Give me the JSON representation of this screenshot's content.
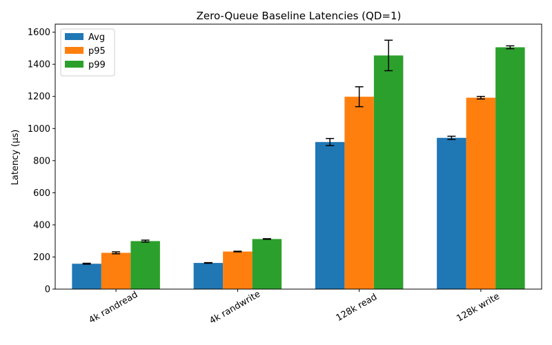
{
  "chart_data": {
    "type": "bar",
    "title": "Zero-Queue Baseline Latencies (QD=1)",
    "xlabel": "",
    "ylabel": "Latency (µs)",
    "ylim": [
      0,
      1650
    ],
    "yticks": [
      0,
      200,
      400,
      600,
      800,
      1000,
      1200,
      1400,
      1600
    ],
    "categories": [
      "4k randread",
      "4k randwrite",
      "128k read",
      "128k write"
    ],
    "series": [
      {
        "name": "Avg",
        "color": "#1f77b4",
        "values": [
          158,
          163,
          916,
          942
        ],
        "errors": [
          3,
          2,
          22,
          10
        ]
      },
      {
        "name": "p95",
        "color": "#ff7f0e",
        "values": [
          226,
          234,
          1198,
          1192
        ],
        "errors": [
          6,
          2,
          62,
          8
        ]
      },
      {
        "name": "p99",
        "color": "#2ca02c",
        "values": [
          299,
          312,
          1455,
          1506
        ],
        "errors": [
          6,
          2,
          95,
          9
        ]
      }
    ],
    "legend_position": "top-left",
    "grid": false,
    "tick_label_rotation": 30
  }
}
